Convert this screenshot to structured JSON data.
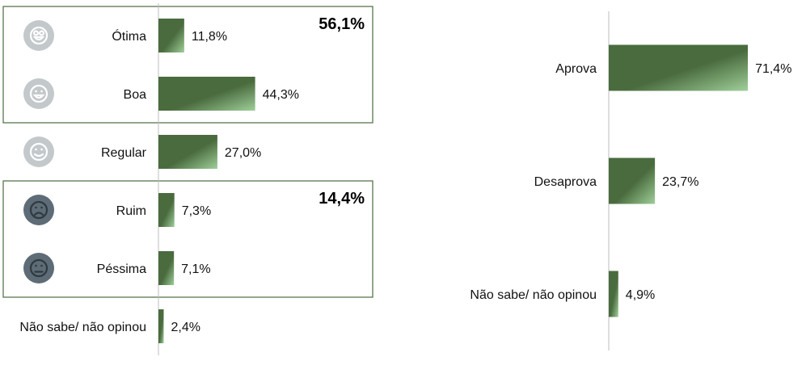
{
  "chart_data": [
    {
      "type": "bar",
      "orientation": "horizontal",
      "categories": [
        "Ótima",
        "Boa",
        "Regular",
        "Ruim",
        "Péssima",
        "Não sabe/ não opinou"
      ],
      "values": [
        11.8,
        44.3,
        27.0,
        7.3,
        7.1,
        2.4
      ],
      "value_labels": [
        "11,8%",
        "44,3%",
        "27,0%",
        "7,3%",
        "7,1%",
        "2,4%"
      ],
      "icons": [
        "very-happy-face-icon",
        "happy-face-icon",
        "smile-face-icon",
        "sad-face-icon",
        "neutral-face-icon",
        ""
      ],
      "groups": [
        {
          "members": [
            "Ótima",
            "Boa"
          ],
          "total_label": "56,1%"
        },
        {
          "members": [
            "Ruim",
            "Péssima"
          ],
          "total_label": "14,4%"
        }
      ],
      "xlim": [
        0,
        100
      ],
      "bar_color": "#4a6b3e",
      "bar_highlight": "#9fcf9a",
      "icon_colors": {
        "positive": "#c3c8cb",
        "negative": "#5d6c76"
      },
      "group_box_color": "#4a6b3e"
    },
    {
      "type": "bar",
      "orientation": "horizontal",
      "categories": [
        "Aprova",
        "Desaprova",
        "Não sabe/ não opinou"
      ],
      "values": [
        71.4,
        23.7,
        4.9
      ],
      "value_labels": [
        "71,4%",
        "23,7%",
        "4,9%"
      ],
      "xlim": [
        0,
        100
      ],
      "bar_color": "#4a6b3e",
      "bar_highlight": "#9fcf9a"
    }
  ]
}
